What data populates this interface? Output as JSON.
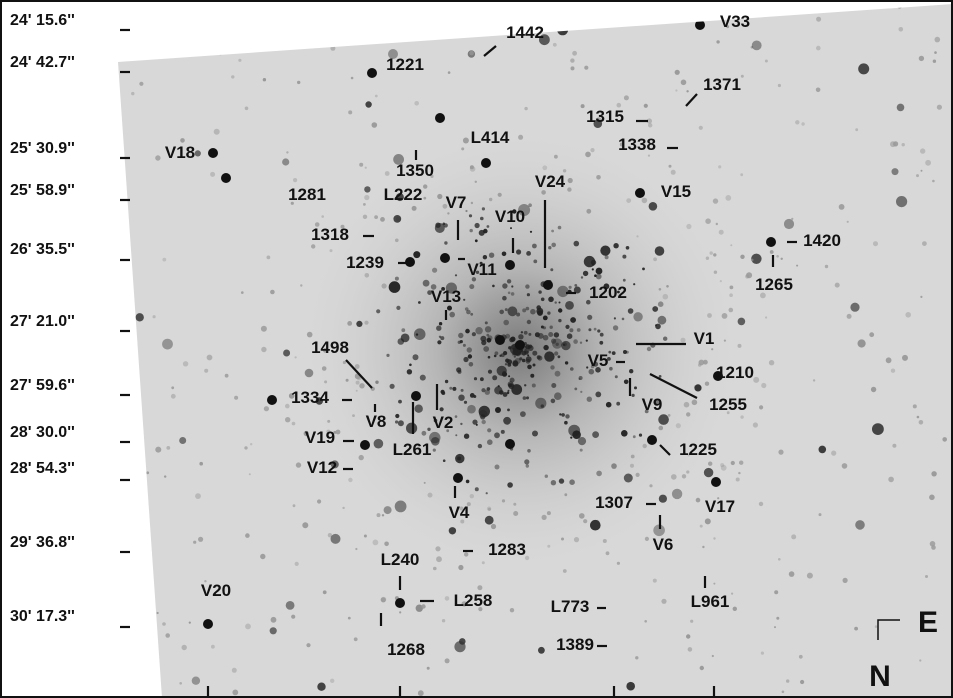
{
  "y_axis_labels": [
    "24' 15.6''",
    "24' 42.7''",
    "25' 30.9''",
    "25' 58.9''",
    "26' 35.5''",
    "27' 21.0''",
    "27' 59.6''",
    "28' 30.0''",
    "28' 54.3''",
    "29' 36.8''",
    "30' 17.3''"
  ],
  "stars": [
    "V33",
    "1442",
    "1221",
    "1371",
    "1315",
    "1338",
    "L414",
    "1350",
    "V18",
    "1281",
    "L222",
    "V24",
    "V15",
    "V7",
    "V10",
    "1318",
    "1239",
    "V11",
    "1420",
    "1265",
    "1202",
    "V13",
    "V1",
    "1498",
    "V5",
    "1210",
    "1255",
    "V9",
    "1334",
    "V8",
    "V2",
    "L261",
    "V19",
    "1225",
    "V12",
    "1307",
    "V17",
    "V4",
    "V6",
    "1283",
    "L240",
    "V20",
    "L258",
    "L961",
    "L773",
    "1268",
    "1389"
  ],
  "directions": {
    "east": "E",
    "north": "N"
  }
}
